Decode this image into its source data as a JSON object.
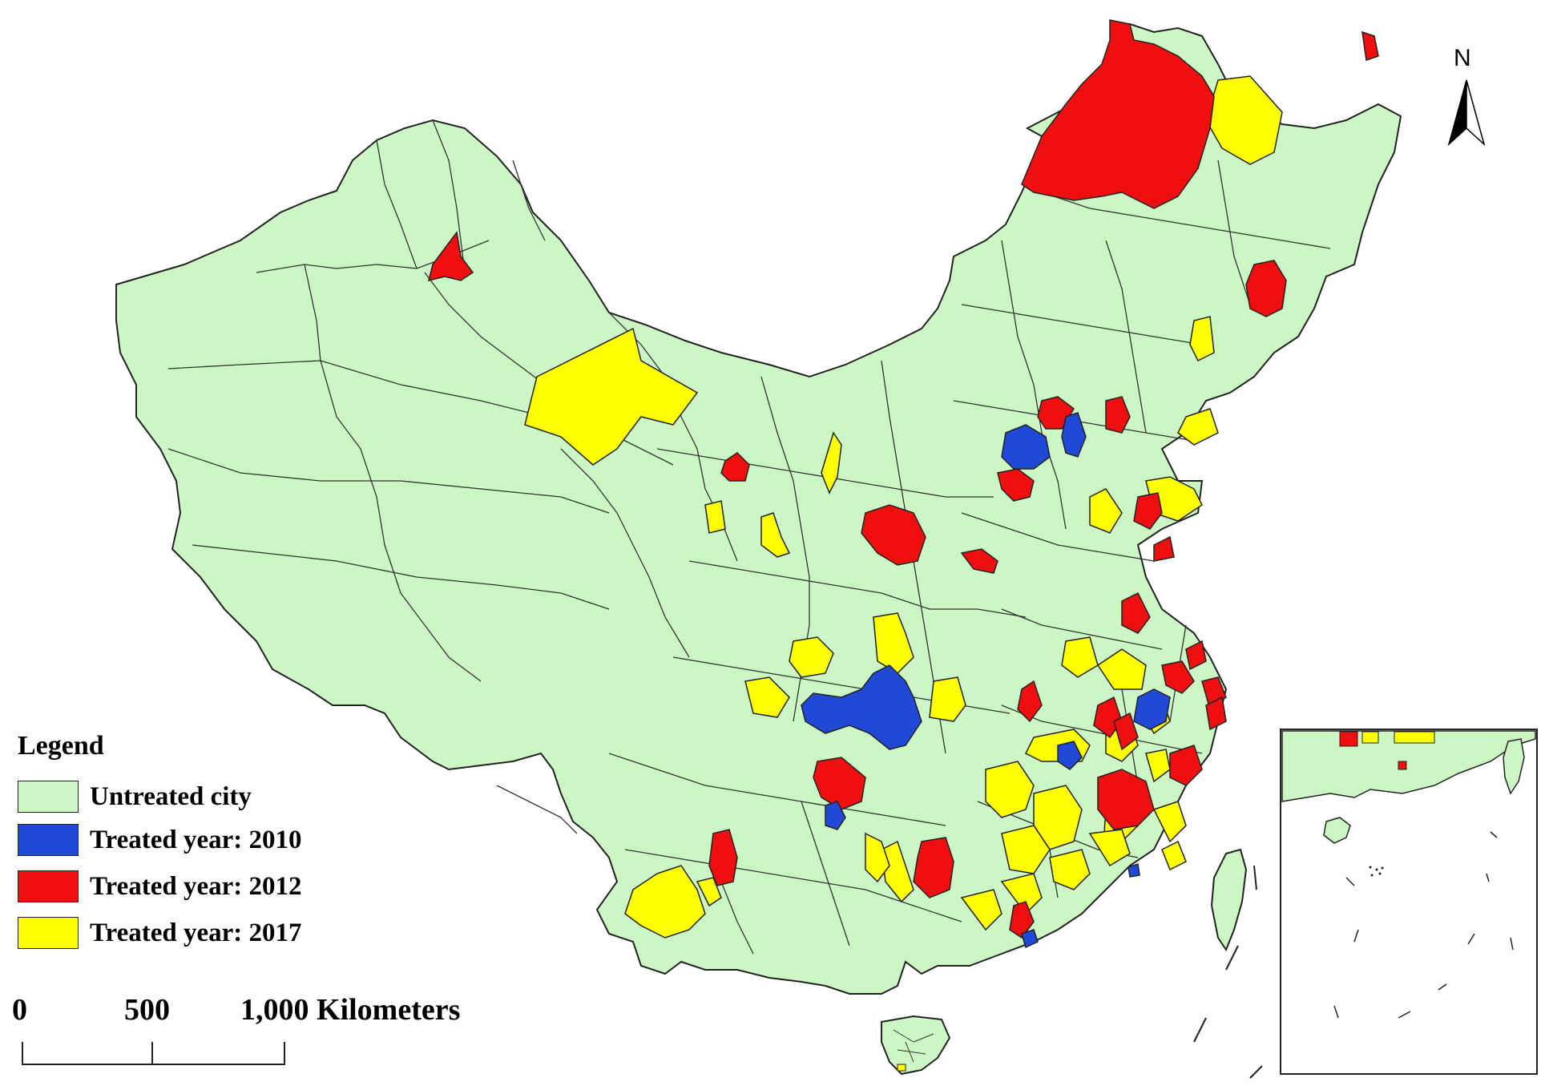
{
  "legend": {
    "title": "Legend",
    "items": [
      {
        "label": "Untreated city",
        "color": "#ccf7c5"
      },
      {
        "label": "Treated year: 2010",
        "color": "#1f49d6"
      },
      {
        "label": "Treated year: 2012",
        "color": "#ef0f0f"
      },
      {
        "label": "Treated year: 2017",
        "color": "#ffff00"
      }
    ]
  },
  "scale_bar": {
    "labels": [
      "0",
      "500",
      "1,000 Kilometers"
    ]
  },
  "north_arrow": {
    "label": "N",
    "icon": "north-arrow-icon"
  },
  "colors": {
    "land": "#ccf7c5",
    "border": "#222222",
    "treated_2010": "#1f49d6",
    "treated_2012": "#ef0f0f",
    "treated_2017": "#ffff00"
  }
}
